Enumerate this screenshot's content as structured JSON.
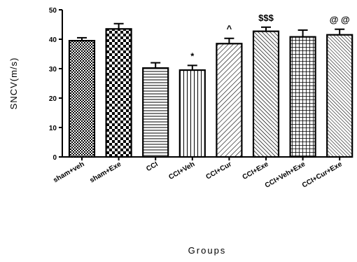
{
  "chart_data": {
    "type": "bar",
    "title": "",
    "xlabel": "Groups",
    "ylabel": "SNCV(m/s)",
    "ylim": [
      0,
      50
    ],
    "yticks": [
      0,
      10,
      20,
      30,
      40,
      50
    ],
    "grid": false,
    "categories": [
      "sham+veh",
      "sham+Exe",
      "CCI",
      "CCI+Veh",
      "CCI+Cur",
      "CCI+Exe",
      "CCI+Veh+Exe",
      "CCI+Cur+Exe"
    ],
    "values": [
      39.5,
      43.5,
      30.2,
      29.5,
      38.5,
      42.7,
      40.8,
      41.5
    ],
    "errors": [
      1.0,
      1.8,
      1.8,
      1.6,
      1.8,
      1.4,
      2.3,
      1.9
    ],
    "patterns": [
      "dense-check",
      "checker",
      "horizontal",
      "vertical",
      "diagonal-right",
      "diagonal-left",
      "grid",
      "diagonal-dense"
    ],
    "annotations": [
      "",
      "",
      "",
      "*",
      "^",
      "$$$",
      "",
      "@ @"
    ]
  }
}
